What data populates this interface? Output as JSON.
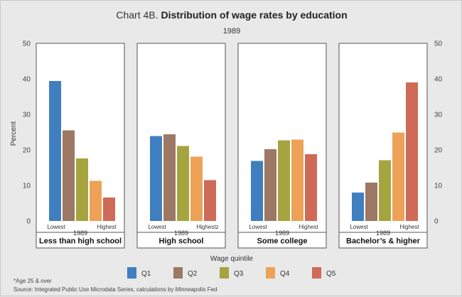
{
  "chart_data": {
    "type": "bar",
    "title_prefix": "Chart 4B.",
    "title": "Distribution of wage rates by education",
    "subtitle": "1989",
    "ylabel": "Percent",
    "xlabel": "Wage quintile",
    "ylim": [
      0,
      50
    ],
    "yticks": [
      0,
      10,
      20,
      30,
      40,
      50
    ],
    "panels": [
      {
        "label": "Less than high school",
        "year": "1989",
        "low_label": "Lowest",
        "high_label": "Highest",
        "values": [
          39.4,
          25.5,
          17.6,
          11.3,
          6.6
        ]
      },
      {
        "label": "High school",
        "year": "1989",
        "low_label": "Lowest",
        "high_label": "Highestz",
        "values": [
          23.9,
          24.4,
          21.1,
          18.1,
          11.5
        ]
      },
      {
        "label": "Some college",
        "year": "1989",
        "low_label": "Lowest",
        "high_label": "Highest",
        "values": [
          16.9,
          20.2,
          22.7,
          22.9,
          18.8
        ]
      },
      {
        "label": "Bachelor’s & higher",
        "year": "1989",
        "low_label": "Lowest",
        "high_label": "Highest",
        "values": [
          8.0,
          10.8,
          17.1,
          24.9,
          39.0
        ]
      }
    ],
    "series": [
      {
        "name": "Q1",
        "color": "#3f7fc0"
      },
      {
        "name": "Q2",
        "color": "#9c7865"
      },
      {
        "name": "Q3",
        "color": "#a5a43f"
      },
      {
        "name": "Q4",
        "color": "#eda257"
      },
      {
        "name": "Q5",
        "color": "#cf6a58"
      }
    ],
    "grid": false,
    "legend_position": "bottom"
  },
  "footnotes": {
    "age_note": "*Age 25 & over",
    "source": "Source: Integrated Public Use Microdata Series, calculations by Minneapolis Fed"
  }
}
